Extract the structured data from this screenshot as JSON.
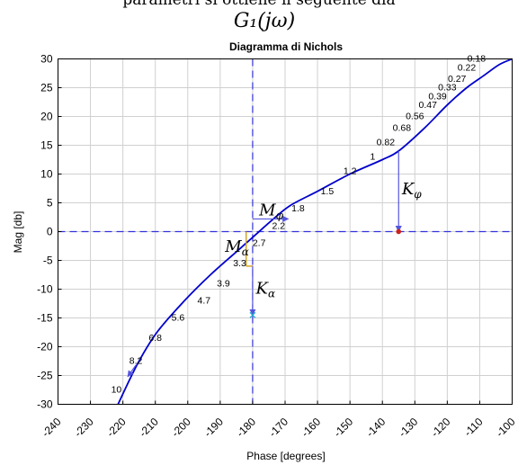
{
  "header_top": "parametri si ottiene il seguente dia",
  "header_math": "G₁(jω)",
  "chart_data": {
    "type": "line",
    "title": "Diagramma di Nichols",
    "xlabel": "Phase [degrees]",
    "ylabel": "Mag [db]",
    "xlim": [
      -240,
      -100
    ],
    "ylim": [
      -30,
      30
    ],
    "x_ticks": [
      -240,
      -230,
      -220,
      -210,
      -200,
      -190,
      -180,
      -170,
      -160,
      -150,
      -140,
      -130,
      -120,
      -110,
      -100
    ],
    "y_ticks": [
      30,
      25,
      20,
      15,
      10,
      5,
      0,
      -5,
      -10,
      -15,
      -20,
      -25,
      -30
    ],
    "grid": true,
    "series": [
      {
        "color": "#0000cc",
        "x": [
          -221.5,
          -215.5,
          -209.5,
          -201,
          -193,
          -185,
          -180,
          -174,
          -168.5,
          -160,
          -150,
          -140,
          -135,
          -127,
          -120,
          -114,
          -109,
          -104,
          -100
        ],
        "y": [
          -30,
          -23,
          -17.5,
          -12,
          -7.5,
          -3.5,
          -1,
          2,
          4.5,
          7,
          10,
          12.5,
          14,
          18,
          22,
          25,
          27,
          29,
          30
        ]
      }
    ],
    "frequency_labels": [
      {
        "text": "10",
        "x": -222,
        "y": -28
      },
      {
        "text": "8.2",
        "x": -216,
        "y": -23
      },
      {
        "text": "6.8",
        "x": -210,
        "y": -19
      },
      {
        "text": "5.6",
        "x": -203,
        "y": -15.5
      },
      {
        "text": "4.7",
        "x": -195,
        "y": -12.5
      },
      {
        "text": "3.9",
        "x": -189,
        "y": -9.5
      },
      {
        "text": "3.3",
        "x": -184,
        "y": -6
      },
      {
        "text": "2.7",
        "x": -178,
        "y": -2.5
      },
      {
        "text": "2.2",
        "x": -172,
        "y": 0.5
      },
      {
        "text": "1.8",
        "x": -166,
        "y": 3.5
      },
      {
        "text": "1.5",
        "x": -157,
        "y": 6.5
      },
      {
        "text": "1.2",
        "x": -150,
        "y": 10
      },
      {
        "text": "1",
        "x": -143,
        "y": 12.5
      },
      {
        "text": "0.82",
        "x": -139,
        "y": 15
      },
      {
        "text": "0.68",
        "x": -134,
        "y": 17.5
      },
      {
        "text": "0.56",
        "x": -130,
        "y": 19.5
      },
      {
        "text": "0.47",
        "x": -126,
        "y": 21.5
      },
      {
        "text": "0.39",
        "x": -123,
        "y": 23
      },
      {
        "text": "0.33",
        "x": -120,
        "y": 24.5
      },
      {
        "text": "0.27",
        "x": -117,
        "y": 26
      },
      {
        "text": "0.22",
        "x": -114,
        "y": 28
      },
      {
        "text": "0.18",
        "x": -111,
        "y": 29.5
      }
    ],
    "reference_lines": {
      "x": -180,
      "y": 0,
      "style": "dashed",
      "color": "#3333dd"
    },
    "annotations": {
      "M_phi": {
        "label": "M",
        "sub": "φ",
        "from": [
          -180,
          2.2
        ],
        "to": [
          -169,
          2.2
        ],
        "lx": -178,
        "ly": 2.8
      },
      "M_alpha": {
        "label": "M",
        "sub": "α",
        "from": [
          -182,
          -6
        ],
        "to": [
          -182,
          0
        ],
        "lx": -188.5,
        "ly": -3.5
      },
      "K_alpha": {
        "label": "K",
        "sub": "α",
        "from": [
          -180,
          -6
        ],
        "to": [
          -180,
          -14.5
        ],
        "lx": -179,
        "ly": -10.8
      },
      "K_phi": {
        "label": "K",
        "sub": "φ",
        "from": [
          -135,
          14
        ],
        "to": [
          -135,
          0
        ],
        "lx": -134,
        "ly": 6.5
      }
    },
    "colors": {
      "curve": "#0000cc",
      "ref": "#3333dd",
      "arrow": "#5555dd",
      "alpha_bar": "#d4a020",
      "marker": "#cc2222",
      "cross": "#22aacc"
    }
  }
}
